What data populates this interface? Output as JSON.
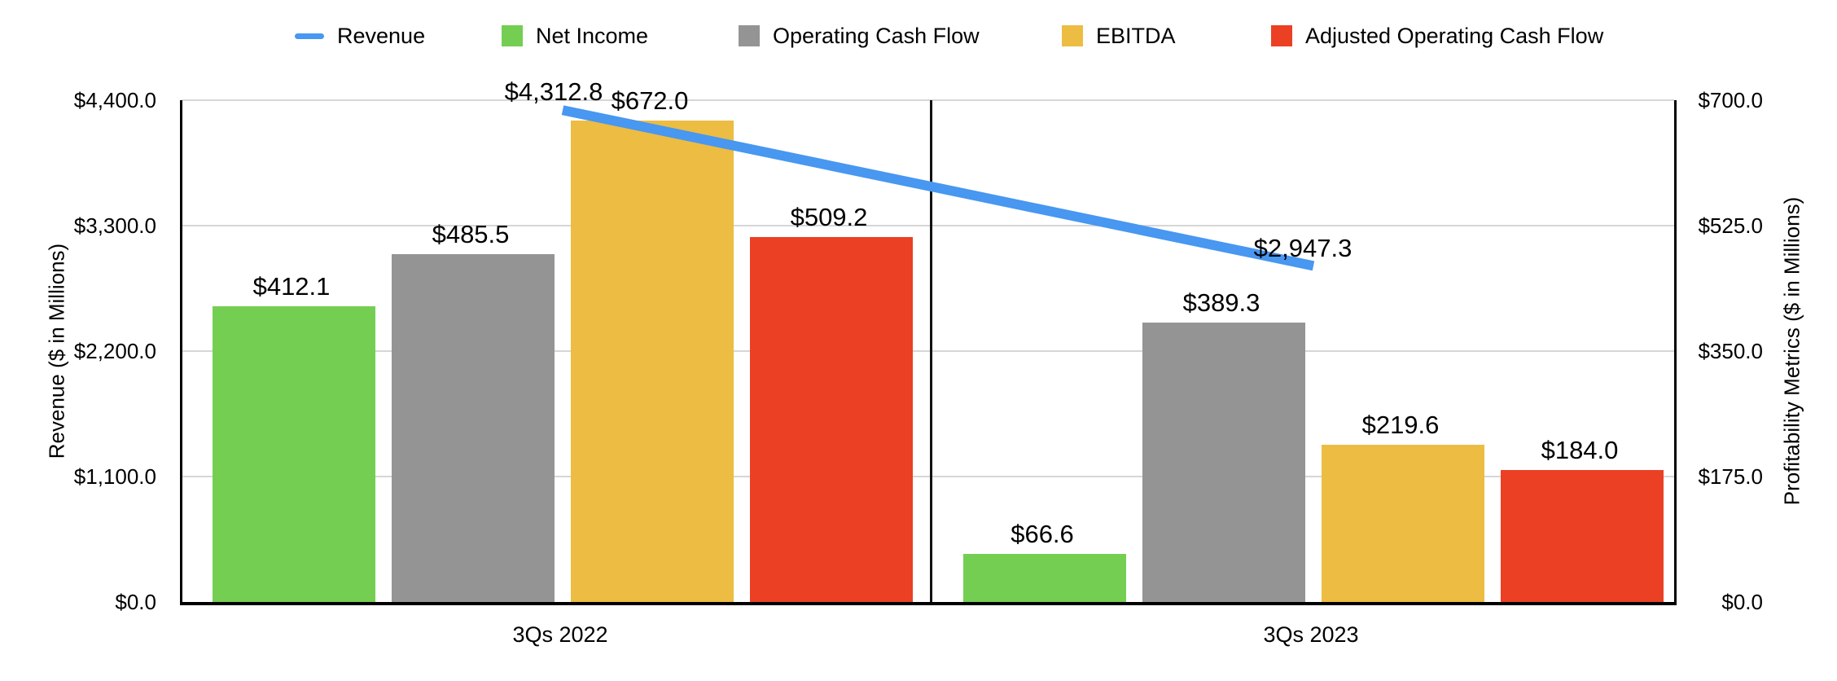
{
  "chart_data": {
    "type": "combo_bar_line",
    "categories": [
      "3Qs 2022",
      "3Qs 2023"
    ],
    "series": [
      {
        "name": "Revenue",
        "type": "line",
        "axis": "left",
        "color": "#4897F0",
        "values": [
          4312.8,
          2947.3
        ],
        "data_labels": [
          "$4,312.8",
          "$2,947.3"
        ]
      },
      {
        "name": "Net Income",
        "type": "bar",
        "axis": "right",
        "color": "#74CE52",
        "values": [
          412.1,
          66.6
        ],
        "data_labels": [
          "$412.1",
          "$66.6"
        ]
      },
      {
        "name": "Operating Cash Flow",
        "type": "bar",
        "axis": "right",
        "color": "#949494",
        "values": [
          485.5,
          389.3
        ],
        "data_labels": [
          "$485.5",
          "$389.3"
        ]
      },
      {
        "name": "EBITDA",
        "type": "bar",
        "axis": "right",
        "color": "#EDBC42",
        "values": [
          672.0,
          219.6
        ],
        "data_labels": [
          "$672.0",
          "$219.6"
        ]
      },
      {
        "name": "Adjusted Operating Cash Flow",
        "type": "bar",
        "axis": "right",
        "color": "#EB4024",
        "values": [
          509.2,
          184.0
        ],
        "data_labels": [
          "$509.2",
          "$184.0"
        ]
      }
    ],
    "left_axis": {
      "title": "Revenue ($ in Millions)",
      "min": 0,
      "max": 4400,
      "tick_values": [
        0,
        1100,
        2200,
        3300,
        4400
      ],
      "tick_labels": [
        "$0.0",
        "$1,100.0",
        "$2,200.0",
        "$3,300.0",
        "$4,400.0"
      ]
    },
    "right_axis": {
      "title": "Profitability Metrics ($ in Millions)",
      "min": 0,
      "max": 700,
      "tick_values": [
        0,
        175,
        350,
        525,
        700
      ],
      "tick_labels": [
        "$0.0",
        "$175.0",
        "$350.0",
        "$525.0",
        "$700.0"
      ]
    },
    "legend_position": "top",
    "grid": true,
    "gridline_color": "#D6D6D6",
    "axis_line_color": "#000000",
    "background_color": "#FFFFFF"
  }
}
